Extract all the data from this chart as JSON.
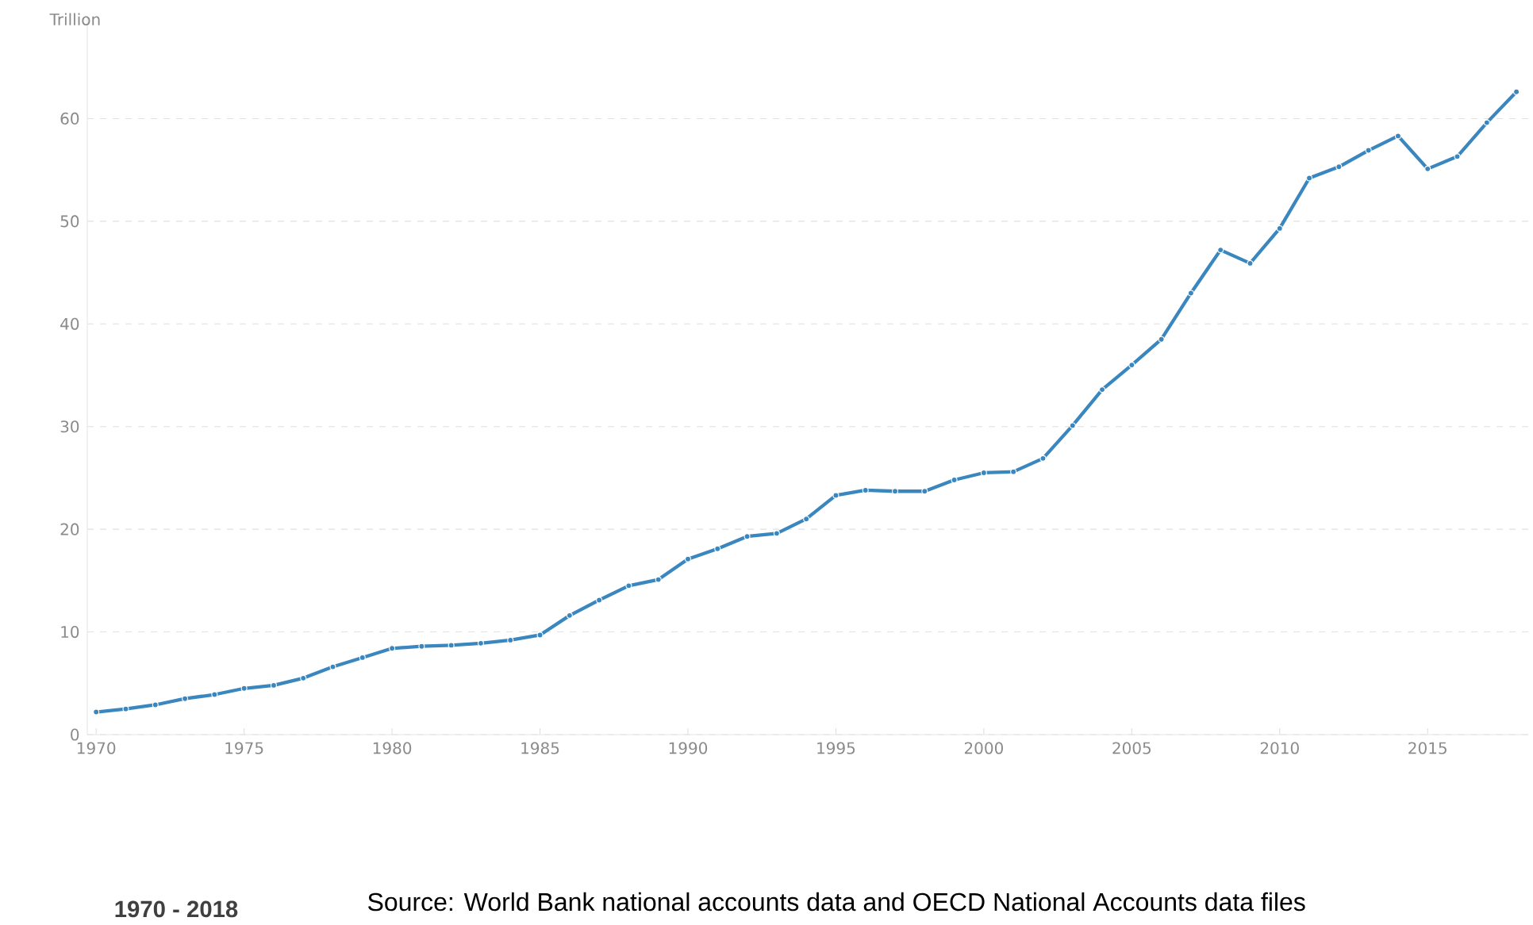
{
  "chart_data": {
    "type": "line",
    "ylabel": "Trillion",
    "x": [
      1970,
      1971,
      1972,
      1973,
      1974,
      1975,
      1976,
      1977,
      1978,
      1979,
      1980,
      1981,
      1982,
      1983,
      1984,
      1985,
      1986,
      1987,
      1988,
      1989,
      1990,
      1991,
      1992,
      1993,
      1994,
      1995,
      1996,
      1997,
      1998,
      1999,
      2000,
      2001,
      2002,
      2003,
      2004,
      2005,
      2006,
      2007,
      2008,
      2009,
      2010,
      2011,
      2012,
      2013,
      2014,
      2015,
      2016,
      2017,
      2018
    ],
    "series": [
      {
        "color": "#3a87c0",
        "values": [
          2.2,
          2.5,
          2.9,
          3.5,
          3.9,
          4.5,
          4.8,
          5.5,
          6.6,
          7.5,
          8.4,
          8.6,
          8.7,
          8.9,
          9.2,
          9.7,
          11.6,
          13.1,
          14.5,
          15.1,
          17.1,
          18.1,
          19.3,
          19.6,
          21.0,
          23.3,
          23.8,
          23.7,
          23.7,
          24.8,
          25.5,
          25.6,
          26.9,
          30.1,
          33.6,
          36.0,
          38.5,
          43.0,
          47.2,
          45.9,
          49.3,
          54.2,
          55.3,
          56.9,
          58.3,
          55.1,
          56.3,
          59.6,
          62.6
        ]
      }
    ],
    "xlim": [
      1969.7,
      2018.4
    ],
    "ylim": [
      0,
      70
    ],
    "xticks": [
      1970,
      1975,
      1980,
      1985,
      1990,
      1995,
      2000,
      2005,
      2010,
      2015
    ],
    "yticks": [
      0,
      10,
      20,
      30,
      40,
      50,
      60
    ],
    "grid": "y",
    "legend": false,
    "marker": "circle",
    "line_style": "solid",
    "annotations": [
      "1970 - 2018",
      "Source: World Bank national accounts data and OECD National Accounts data files"
    ]
  }
}
